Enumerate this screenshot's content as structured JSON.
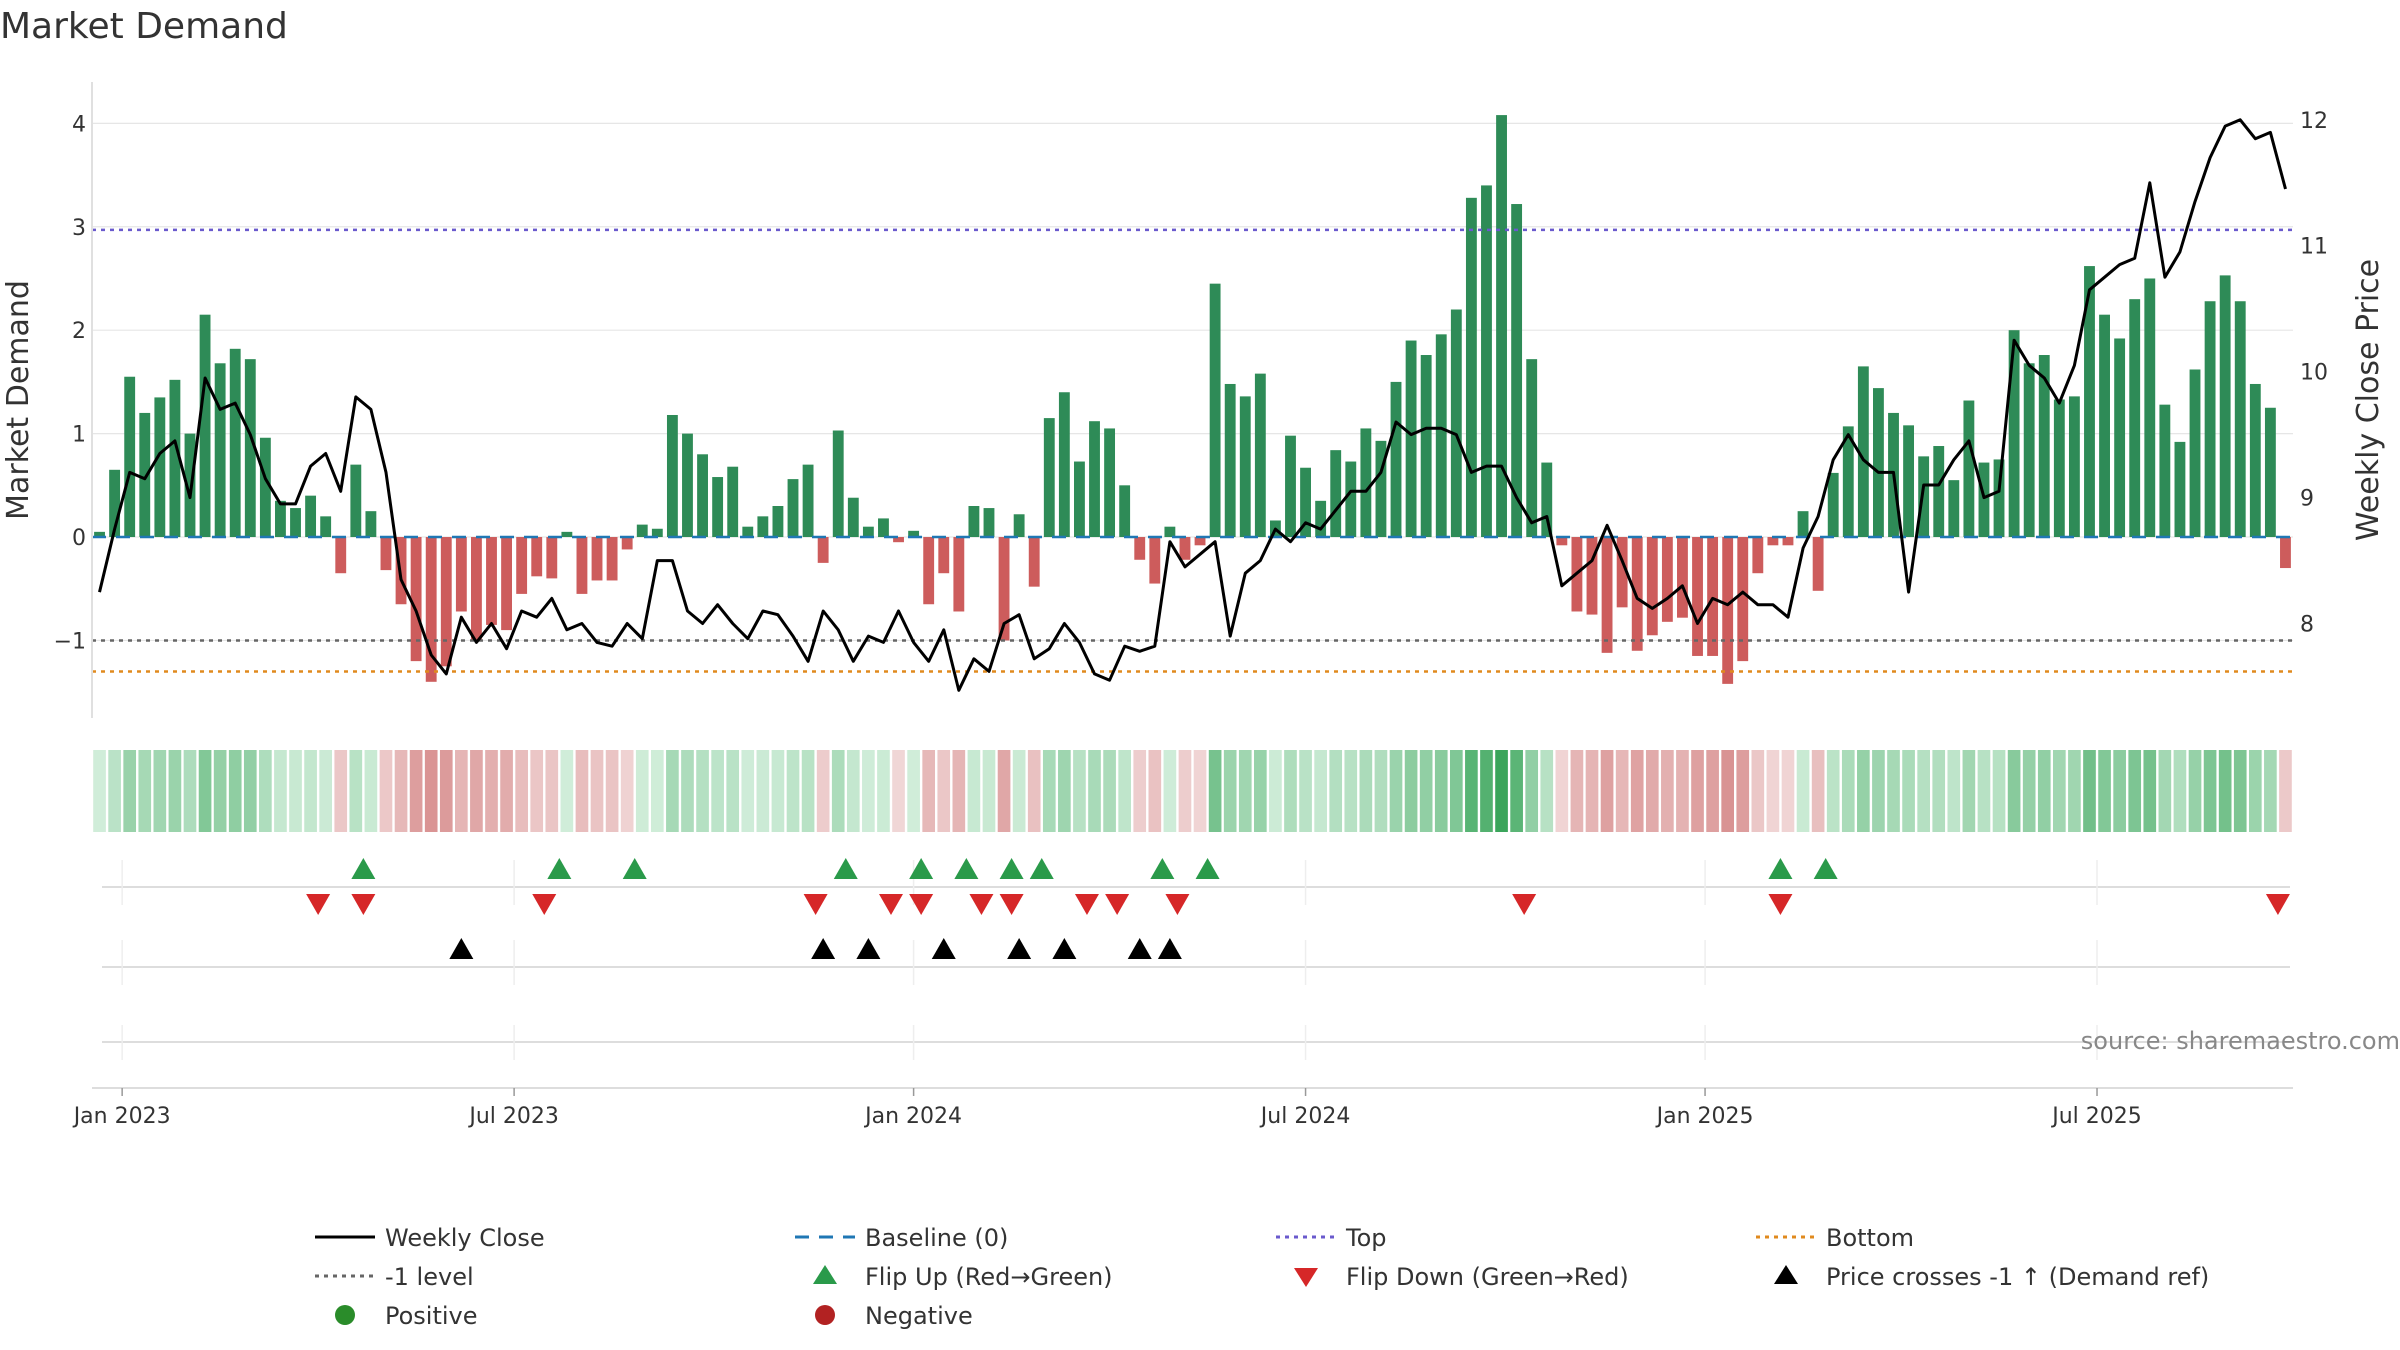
{
  "chart_data": {
    "type": "bar+line",
    "title": "Market Demand",
    "ylabel_left": "Market Demand",
    "ylabel_right": "Weekly Close Price",
    "ylim_left": [
      -1.75,
      4.4
    ],
    "ylim_right": [
      7.25,
      12.3
    ],
    "left_ticks": [
      {
        "v": 4,
        "label": "4"
      },
      {
        "v": 3,
        "label": "3"
      },
      {
        "v": 2,
        "label": "2"
      },
      {
        "v": 1,
        "label": "1"
      },
      {
        "v": 0,
        "label": "0"
      },
      {
        "v": -1,
        "label": "−1"
      }
    ],
    "right_ticks": [
      {
        "v": 12,
        "label": "12"
      },
      {
        "v": 11,
        "label": "11"
      },
      {
        "v": 10,
        "label": "10"
      },
      {
        "v": 9,
        "label": "9"
      },
      {
        "v": 8,
        "label": "8"
      }
    ],
    "x_ticks": [
      {
        "label": "Jan 2023",
        "week": 0
      },
      {
        "label": "Jul 2023",
        "week": 26
      },
      {
        "label": "Jan 2024",
        "week": 52.5
      },
      {
        "label": "Jul 2024",
        "week": 78.5
      },
      {
        "label": "Jan 2025",
        "week": 105
      },
      {
        "label": "Jul 2025",
        "week": 131
      }
    ],
    "start_week": -1.5,
    "reference_lines": [
      {
        "name": "Baseline (0)",
        "value": 0,
        "color": "#1f77b4",
        "style": "dashed"
      },
      {
        "name": "Top",
        "value": 2.97,
        "color": "#6a5acd",
        "style": "dotted"
      },
      {
        "name": "-1 level",
        "value": -1.0,
        "color": "#666666",
        "style": "dotted"
      },
      {
        "name": "Bottom",
        "value": -1.3,
        "color": "#e08a1e",
        "style": "dotted"
      }
    ],
    "demand": [
      0.05,
      0.65,
      1.55,
      1.2,
      1.35,
      1.52,
      1.0,
      2.15,
      1.68,
      1.82,
      1.72,
      0.96,
      0.35,
      0.28,
      0.4,
      0.2,
      -0.35,
      0.7,
      0.25,
      -0.32,
      -0.65,
      -1.2,
      -1.4,
      -1.25,
      -0.72,
      -1.0,
      -0.85,
      -0.9,
      -0.55,
      -0.38,
      -0.4,
      0.05,
      -0.55,
      -0.42,
      -0.42,
      -0.12,
      0.12,
      0.08,
      1.18,
      1.0,
      0.8,
      0.58,
      0.68,
      0.1,
      0.2,
      0.3,
      0.56,
      0.7,
      -0.25,
      1.03,
      0.38,
      0.1,
      0.18,
      -0.05,
      0.06,
      -0.65,
      -0.35,
      -0.72,
      0.3,
      0.28,
      -1.0,
      0.22,
      -0.48,
      1.15,
      1.4,
      0.73,
      1.12,
      1.05,
      0.5,
      -0.22,
      -0.45,
      0.1,
      -0.22,
      -0.08,
      2.45,
      1.48,
      1.36,
      1.58,
      0.16,
      0.98,
      0.67,
      0.35,
      0.84,
      0.73,
      1.05,
      0.93,
      1.5,
      1.9,
      1.76,
      1.96,
      2.2,
      3.28,
      3.4,
      4.08,
      3.22,
      1.72,
      0.72,
      -0.08,
      -0.72,
      -0.75,
      -1.12,
      -0.68,
      -1.1,
      -0.95,
      -0.82,
      -0.78,
      -1.15,
      -1.15,
      -1.42,
      -1.2,
      -0.35,
      -0.08,
      -0.08,
      0.25,
      -0.52,
      0.62,
      1.07,
      1.65,
      1.44,
      1.2,
      1.08,
      0.78,
      0.88,
      0.55,
      1.32,
      0.72,
      0.75,
      2.0,
      1.68,
      1.76,
      1.33,
      1.36,
      2.62,
      2.15,
      1.92,
      2.3,
      2.5,
      1.28,
      0.92,
      1.62,
      2.28,
      2.53,
      2.28,
      1.48,
      1.25,
      -0.3
    ],
    "close": [
      8.25,
      8.75,
      9.2,
      9.15,
      9.35,
      9.45,
      9.0,
      9.95,
      9.7,
      9.75,
      9.5,
      9.15,
      8.95,
      8.95,
      9.25,
      9.35,
      9.05,
      9.8,
      9.7,
      9.2,
      8.35,
      8.1,
      7.75,
      7.6,
      8.05,
      7.85,
      8.0,
      7.8,
      8.1,
      8.05,
      8.2,
      7.95,
      8.0,
      7.85,
      7.82,
      8.0,
      7.88,
      8.5,
      8.5,
      8.1,
      8.0,
      8.15,
      8.0,
      7.88,
      8.1,
      8.07,
      7.9,
      7.7,
      8.1,
      7.95,
      7.7,
      7.9,
      7.85,
      8.1,
      7.85,
      7.7,
      7.95,
      7.47,
      7.72,
      7.62,
      8.0,
      8.07,
      7.72,
      7.8,
      8.0,
      7.85,
      7.6,
      7.55,
      7.82,
      7.78,
      7.82,
      8.65,
      8.45,
      8.55,
      8.65,
      7.9,
      8.4,
      8.5,
      8.75,
      8.65,
      8.8,
      8.75,
      8.9,
      9.05,
      9.05,
      9.2,
      9.6,
      9.5,
      9.55,
      9.55,
      9.5,
      9.2,
      9.25,
      9.25,
      9.0,
      8.8,
      8.85,
      8.3,
      8.4,
      8.5,
      8.78,
      8.5,
      8.2,
      8.12,
      8.2,
      8.3,
      8.0,
      8.2,
      8.15,
      8.25,
      8.15,
      8.15,
      8.05,
      8.6,
      8.85,
      9.3,
      9.5,
      9.3,
      9.2,
      9.2,
      8.25,
      9.1,
      9.1,
      9.3,
      9.45,
      9.0,
      9.05,
      10.25,
      10.05,
      9.95,
      9.75,
      10.05,
      10.65,
      10.75,
      10.85,
      10.9,
      11.5,
      10.75,
      10.95,
      11.35,
      11.7,
      11.95,
      12.0,
      11.85,
      11.9,
      11.45
    ],
    "flip_up_weeks": [
      16,
      29,
      34,
      48,
      53,
      56,
      59,
      61,
      69,
      72,
      110,
      113
    ],
    "flip_down_weeks": [
      13,
      16,
      28,
      46,
      51,
      53,
      57,
      59,
      64,
      66,
      70,
      93,
      110,
      143
    ],
    "price_cross_weeks": [
      22.5,
      46.5,
      49.5,
      54.5,
      59.5,
      62.5,
      67.5,
      69.5
    ],
    "source_text": "source: sharemaestro.com",
    "legend": [
      {
        "label": "Weekly Close",
        "kind": "line",
        "color": "#000000"
      },
      {
        "label": "Baseline (0)",
        "kind": "dash",
        "color": "#1f77b4"
      },
      {
        "label": "Top",
        "kind": "dot",
        "color": "#6a5acd"
      },
      {
        "label": "Bottom",
        "kind": "dot",
        "color": "#e08a1e"
      },
      {
        "label": "-1 level",
        "kind": "dot",
        "color": "#666666"
      },
      {
        "label": "Flip Up (Red→Green)",
        "kind": "tri-up",
        "color": "#2a9a4a"
      },
      {
        "label": "Flip Down (Green→Red)",
        "kind": "tri-down",
        "color": "#d62728"
      },
      {
        "label": "Price crosses -1 ↑ (Demand ref)",
        "kind": "tri-up",
        "color": "#000000"
      },
      {
        "label": "Positive",
        "kind": "circle",
        "color": "#2a8c2a"
      },
      {
        "label": "Negative",
        "kind": "circle",
        "color": "#b22222"
      }
    ],
    "colors": {
      "positive_bar": "#2e8b57",
      "negative_bar": "#cd5c5c",
      "flip_up": "#2a9a4a",
      "flip_down": "#d62728",
      "grid": "#e6e6e6"
    }
  }
}
